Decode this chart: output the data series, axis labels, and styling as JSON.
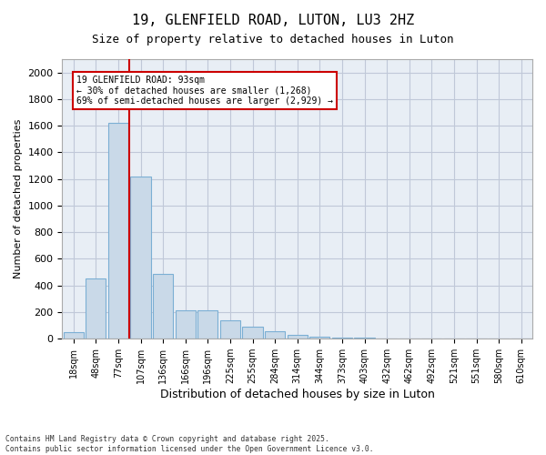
{
  "title": "19, GLENFIELD ROAD, LUTON, LU3 2HZ",
  "subtitle": "Size of property relative to detached houses in Luton",
  "xlabel": "Distribution of detached houses by size in Luton",
  "ylabel": "Number of detached properties",
  "categories": [
    "18sqm",
    "48sqm",
    "77sqm",
    "107sqm",
    "136sqm",
    "166sqm",
    "196sqm",
    "225sqm",
    "255sqm",
    "284sqm",
    "314sqm",
    "344sqm",
    "373sqm",
    "403sqm",
    "432sqm",
    "462sqm",
    "492sqm",
    "521sqm",
    "551sqm",
    "580sqm",
    "610sqm"
  ],
  "values": [
    50,
    450,
    1620,
    1220,
    490,
    215,
    215,
    140,
    90,
    55,
    30,
    15,
    10,
    5,
    3,
    2,
    1,
    1,
    0,
    0,
    0
  ],
  "bar_color": "#c9d9e8",
  "bar_edge_color": "#7bafd4",
  "red_line_x": 2.5,
  "red_line_color": "#cc0000",
  "annotation_title": "19 GLENFIELD ROAD: 93sqm",
  "annotation_line1": "← 30% of detached houses are smaller (1,268)",
  "annotation_line2": "69% of semi-detached houses are larger (2,929) →",
  "annotation_box_color": "#cc0000",
  "ylim": [
    0,
    2100
  ],
  "yticks": [
    0,
    200,
    400,
    600,
    800,
    1000,
    1200,
    1400,
    1600,
    1800,
    2000
  ],
  "grid_color": "#c0c8d8",
  "bg_color": "#e8eef5",
  "footer1": "Contains HM Land Registry data © Crown copyright and database right 2025.",
  "footer2": "Contains public sector information licensed under the Open Government Licence v3.0."
}
